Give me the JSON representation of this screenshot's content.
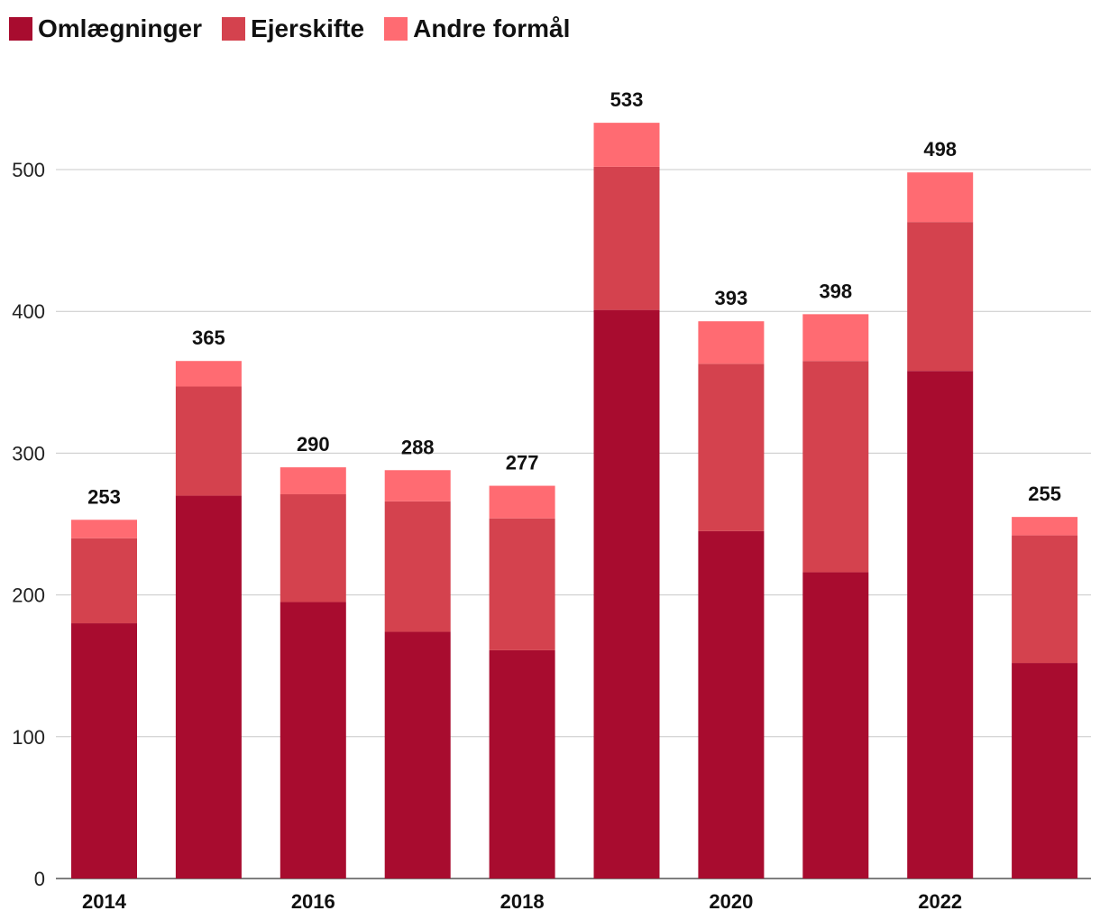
{
  "chart_data": {
    "type": "bar",
    "stacked": true,
    "categories": [
      "2014",
      "2015",
      "2016",
      "2017",
      "2018",
      "2019",
      "2020",
      "2021",
      "2022",
      "2023"
    ],
    "x_tick_labels": [
      "2014",
      "",
      "2016",
      "",
      "2018",
      "",
      "2020",
      "",
      "2022",
      ""
    ],
    "series": [
      {
        "name": "Omlægninger",
        "color": "#a80c2f",
        "values": [
          180,
          270,
          195,
          174,
          161,
          401,
          245,
          216,
          358,
          152
        ]
      },
      {
        "name": "Ejerskifte",
        "color": "#d4424e",
        "values": [
          60,
          77,
          76,
          92,
          93,
          101,
          118,
          149,
          105,
          90
        ]
      },
      {
        "name": "Andre formål",
        "color": "#ff6b72",
        "values": [
          13,
          18,
          19,
          22,
          23,
          31,
          30,
          33,
          35,
          13
        ]
      }
    ],
    "totals": [
      253,
      365,
      290,
      288,
      277,
      533,
      393,
      398,
      498,
      255
    ],
    "y_ticks": [
      0,
      100,
      200,
      300,
      400,
      500
    ],
    "ylim": [
      0,
      500
    ],
    "grid": true,
    "legend": "top-left"
  }
}
